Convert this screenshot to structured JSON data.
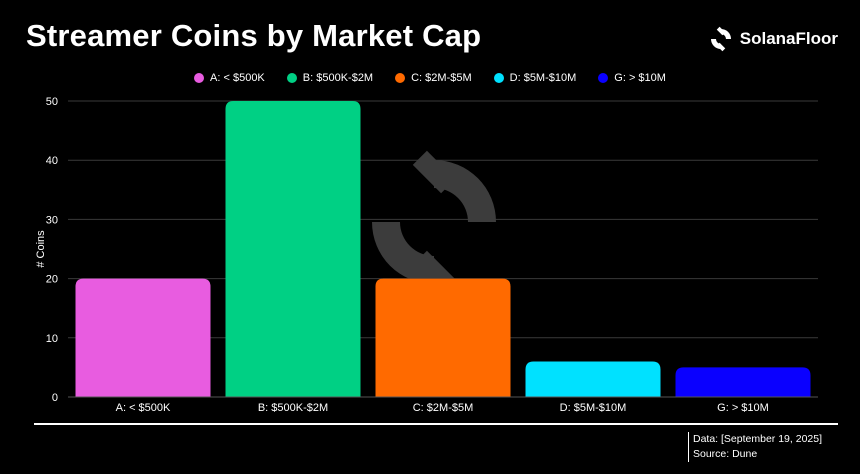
{
  "title": "Streamer Coins by Market Cap",
  "brand": {
    "name": "SolanaFloor",
    "icon": "solanafloor-logo-icon"
  },
  "colors": {
    "background": "#000000",
    "grid": "#3a3a3a",
    "text": "#ffffff",
    "watermark": "#3c3c3c"
  },
  "chart_data": {
    "type": "bar",
    "title": "Streamer Coins by Market Cap",
    "xlabel": "",
    "ylabel": "# Coins",
    "ylim": [
      0,
      50
    ],
    "yticks": [
      0,
      10,
      20,
      30,
      40,
      50
    ],
    "grid": true,
    "legend_position": "top-center",
    "categories": [
      "A: < $500K",
      "B: $500K-$2M",
      "C: $2M-$5M",
      "D: $5M-$10M",
      "G: > $10M"
    ],
    "values": [
      20,
      50,
      20,
      6,
      5
    ],
    "colors": [
      "#e85ce0",
      "#00d084",
      "#ff6a00",
      "#00e1ff",
      "#0a00ff"
    ],
    "legend": [
      "A: < $500K",
      "B: $500K-$2M",
      "C: $2M-$5M",
      "D: $5M-$10M",
      "G: > $10M"
    ]
  },
  "source": {
    "data_line": "Data: [September 19, 2025]",
    "source_line": "Source: Dune"
  }
}
